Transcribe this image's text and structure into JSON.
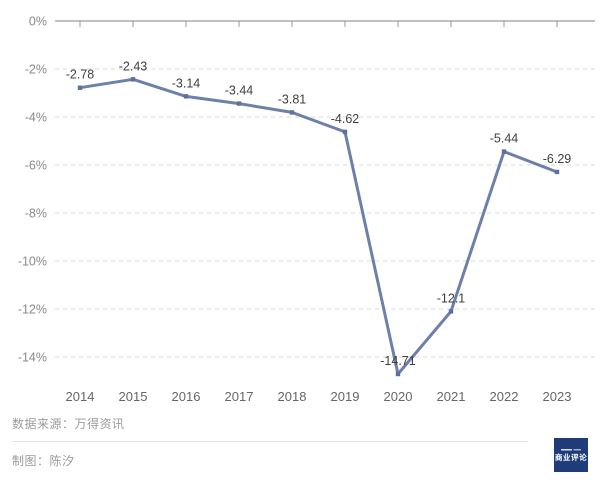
{
  "chart_data": {
    "type": "line",
    "categories": [
      "2014",
      "2015",
      "2016",
      "2017",
      "2018",
      "2019",
      "2020",
      "2021",
      "2022",
      "2023"
    ],
    "series": [
      {
        "name": "",
        "values": [
          -2.78,
          -2.43,
          -3.14,
          -3.44,
          -3.81,
          -4.62,
          -14.71,
          -12.1,
          -5.44,
          -6.29
        ]
      }
    ],
    "title": "",
    "xlabel": "",
    "ylabel": "",
    "ylim": [
      -15.5,
      0
    ],
    "y_ticks": [
      0,
      -2,
      -4,
      -6,
      -8,
      -10,
      -12,
      -14
    ],
    "y_tick_suffix": "%",
    "grid": "horizontal-dashed",
    "legend": "none",
    "colors": {
      "line": "#6e80aa",
      "marker": "#5d6f9d",
      "data_label": "#3f3f3f",
      "axis_line": "#999999",
      "gridline": "#d9d9d9",
      "y_tick_label": "#8a8a8a",
      "x_tick_label": "#666666"
    }
  },
  "footer": {
    "source": "数据来源：万得资讯",
    "credit": "制图：陈汐"
  },
  "logo": {
    "text": "商业评论",
    "background": "#1e3c78"
  }
}
